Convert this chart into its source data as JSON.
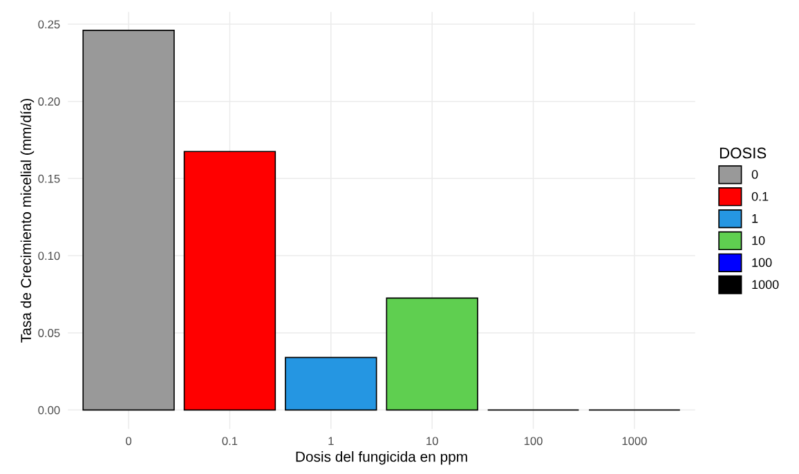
{
  "chart_data": {
    "type": "bar",
    "xlabel": "Dosis del fungicida en ppm",
    "ylabel": "Tasa de Crecimiento micelial (mm/día)",
    "legend_title": "DOSIS",
    "categories": [
      "0",
      "0.1",
      "1",
      "10",
      "100",
      "1000"
    ],
    "series": [
      {
        "name": "0",
        "color": "#999999",
        "values": [
          0.246,
          null,
          null,
          null,
          null,
          null
        ]
      },
      {
        "name": "0.1",
        "color": "#ff0000",
        "values": [
          null,
          0.1675,
          null,
          null,
          null,
          null
        ]
      },
      {
        "name": "1",
        "color": "#2596e2",
        "values": [
          null,
          null,
          0.034,
          null,
          null,
          null
        ]
      },
      {
        "name": "10",
        "color": "#5fcf50",
        "values": [
          null,
          null,
          null,
          0.0725,
          null,
          null
        ]
      },
      {
        "name": "100",
        "color": "#0000ff",
        "values": [
          null,
          null,
          null,
          null,
          0,
          null
        ]
      },
      {
        "name": "1000",
        "color": "#000000",
        "values": [
          null,
          null,
          null,
          null,
          null,
          0
        ]
      }
    ],
    "ylim": [
      -0.0123,
      0.258
    ],
    "yticks": [
      {
        "value": 0,
        "label": "0.00"
      },
      {
        "value": 0.05,
        "label": "0.05"
      },
      {
        "value": 0.1,
        "label": "0.10"
      },
      {
        "value": 0.15,
        "label": "0.15"
      },
      {
        "value": 0.2,
        "label": "0.20"
      },
      {
        "value": 0.25,
        "label": "0.25"
      }
    ],
    "grid": true,
    "legend": "right"
  }
}
